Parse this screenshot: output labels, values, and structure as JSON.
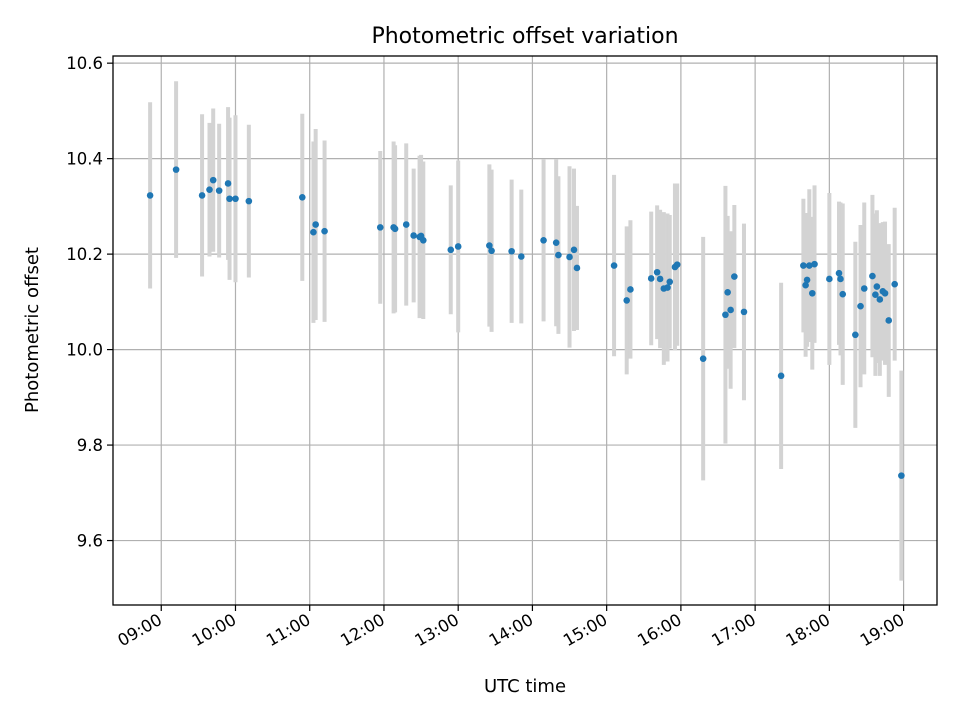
{
  "chart_data": {
    "type": "scatter",
    "title": "Photometric offset variation",
    "xlabel": "UTC time",
    "ylabel": "Photometric offset",
    "x_tick_labels": [
      "09:00",
      "10:00",
      "11:00",
      "12:00",
      "13:00",
      "14:00",
      "15:00",
      "16:00",
      "17:00",
      "18:00",
      "19:00"
    ],
    "y_tick_labels": [
      "9.6",
      "9.8",
      "10.0",
      "10.2",
      "10.4",
      "10.6"
    ],
    "x_ticks_hours": [
      9,
      10,
      11,
      12,
      13,
      14,
      15,
      16,
      17,
      18,
      19
    ],
    "y_ticks": [
      9.6,
      9.8,
      10.0,
      10.2,
      10.4,
      10.6
    ],
    "xlim_hours": [
      8.35,
      19.45
    ],
    "ylim": [
      9.465,
      10.615
    ],
    "grid": true,
    "marker_color": "#1f77b4",
    "errorbar_color": "#d3d3d3",
    "series": [
      {
        "x_hours": [
          8.85,
          9.2,
          9.55,
          9.65,
          9.7,
          9.78,
          9.9,
          9.92,
          10.0,
          10.18,
          10.9,
          11.05,
          11.08,
          11.2,
          11.95,
          12.13,
          12.15,
          12.3,
          12.4,
          12.48,
          12.5,
          12.53,
          12.9,
          13.0,
          13.42,
          13.45,
          13.72,
          13.85,
          14.15,
          14.32,
          14.35,
          14.5,
          14.56,
          14.6,
          15.1,
          15.27,
          15.32,
          15.6,
          15.68,
          15.72,
          15.77,
          15.82,
          15.85,
          15.92,
          15.95,
          16.3,
          16.6,
          16.63,
          16.67,
          16.72,
          16.85,
          17.35,
          17.65,
          17.68,
          17.7,
          17.73,
          17.77,
          17.8,
          18.0,
          18.13,
          18.15,
          18.18,
          18.35,
          18.42,
          18.47,
          18.58,
          18.62,
          18.64,
          18.68,
          18.72,
          18.75,
          18.8,
          18.88,
          18.97
        ],
        "y": [
          10.323,
          10.377,
          10.323,
          10.335,
          10.355,
          10.333,
          10.348,
          10.316,
          10.316,
          10.311,
          10.319,
          10.246,
          10.262,
          10.248,
          10.256,
          10.256,
          10.253,
          10.262,
          10.239,
          10.236,
          10.238,
          10.229,
          10.209,
          10.216,
          10.218,
          10.207,
          10.206,
          10.195,
          10.229,
          10.224,
          10.198,
          10.194,
          10.209,
          10.171,
          10.176,
          10.103,
          10.126,
          10.149,
          10.162,
          10.148,
          10.128,
          10.13,
          10.142,
          10.173,
          10.178,
          9.981,
          10.073,
          10.12,
          10.083,
          10.153,
          10.079,
          9.945,
          10.176,
          10.135,
          10.146,
          10.176,
          10.118,
          10.179,
          10.148,
          10.16,
          10.148,
          10.116,
          10.031,
          10.091,
          10.128,
          10.154,
          10.115,
          10.132,
          10.105,
          10.122,
          10.118,
          10.061,
          10.137,
          9.736
        ],
        "y_err": [
          0.195,
          0.185,
          0.17,
          0.14,
          0.15,
          0.14,
          0.16,
          0.17,
          0.175,
          0.16,
          0.175,
          0.19,
          0.2,
          0.19,
          0.16,
          0.18,
          0.175,
          0.17,
          0.14,
          0.17,
          0.17,
          0.165,
          0.135,
          0.18,
          0.17,
          0.17,
          0.15,
          0.14,
          0.17,
          0.175,
          0.165,
          0.19,
          0.17,
          0.13,
          0.19,
          0.155,
          0.145,
          0.14,
          0.14,
          0.145,
          0.16,
          0.155,
          0.14,
          0.175,
          0.17,
          0.255,
          0.27,
          0.16,
          0.165,
          0.15,
          0.185,
          0.195,
          0.14,
          0.15,
          0.14,
          0.16,
          0.16,
          0.165,
          0.18,
          0.15,
          0.16,
          0.19,
          0.195,
          0.17,
          0.18,
          0.17,
          0.17,
          0.16,
          0.16,
          0.145,
          0.15,
          0.16,
          0.16,
          0.22
        ]
      }
    ]
  }
}
